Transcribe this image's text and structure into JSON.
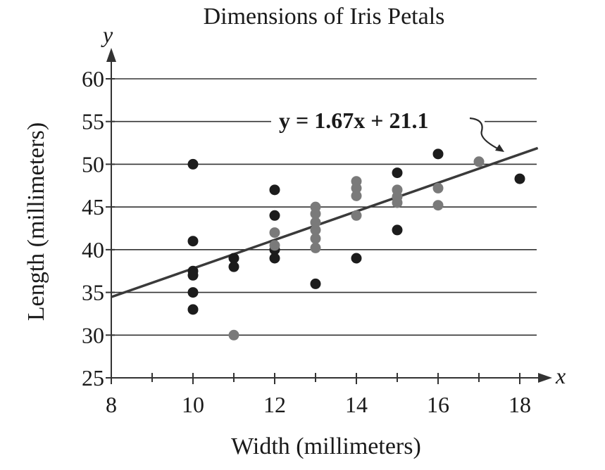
{
  "chart_data": {
    "type": "scatter",
    "title": "Dimensions of Iris Petals",
    "xlabel": "Width (millimeters)",
    "ylabel": "Length (millimeters)",
    "x_axis_var": "x",
    "y_axis_var": "y",
    "xlim": [
      8,
      18
    ],
    "ylim": [
      25,
      60
    ],
    "xticks": [
      8,
      10,
      12,
      14,
      16,
      18
    ],
    "yticks": [
      25,
      30,
      35,
      40,
      45,
      50,
      55,
      60
    ],
    "grid": "horizontal",
    "series": [
      {
        "name": "dark points",
        "color": "#1c1c1c",
        "points": [
          {
            "x": 10,
            "y": 50
          },
          {
            "x": 10,
            "y": 41
          },
          {
            "x": 10,
            "y": 37.5
          },
          {
            "x": 10,
            "y": 37
          },
          {
            "x": 10,
            "y": 35
          },
          {
            "x": 10,
            "y": 33
          },
          {
            "x": 11,
            "y": 39
          },
          {
            "x": 11,
            "y": 38
          },
          {
            "x": 12,
            "y": 47
          },
          {
            "x": 12,
            "y": 44
          },
          {
            "x": 12,
            "y": 40
          },
          {
            "x": 12,
            "y": 39
          },
          {
            "x": 13,
            "y": 36
          },
          {
            "x": 14,
            "y": 39
          },
          {
            "x": 15,
            "y": 49
          },
          {
            "x": 15,
            "y": 42.3
          },
          {
            "x": 16,
            "y": 51.2
          },
          {
            "x": 18,
            "y": 48.3
          }
        ]
      },
      {
        "name": "gray points",
        "color": "#7a7a7a",
        "points": [
          {
            "x": 11,
            "y": 30
          },
          {
            "x": 12,
            "y": 42
          },
          {
            "x": 12,
            "y": 40.5
          },
          {
            "x": 13,
            "y": 45
          },
          {
            "x": 13,
            "y": 44.2
          },
          {
            "x": 13,
            "y": 43.2
          },
          {
            "x": 13,
            "y": 42.3
          },
          {
            "x": 13,
            "y": 41.3
          },
          {
            "x": 13,
            "y": 40.2
          },
          {
            "x": 14,
            "y": 48
          },
          {
            "x": 14,
            "y": 47.2
          },
          {
            "x": 14,
            "y": 46.3
          },
          {
            "x": 14,
            "y": 44
          },
          {
            "x": 15,
            "y": 47
          },
          {
            "x": 15,
            "y": 46.2
          },
          {
            "x": 15,
            "y": 45.5
          },
          {
            "x": 16,
            "y": 47.2
          },
          {
            "x": 16,
            "y": 45.2
          },
          {
            "x": 17,
            "y": 50.3
          }
        ]
      }
    ],
    "trendline": {
      "slope": 1.67,
      "intercept": 21.1,
      "x_range": [
        8,
        18.2
      ]
    },
    "annotation": "y = 1.67x + 21.1"
  }
}
